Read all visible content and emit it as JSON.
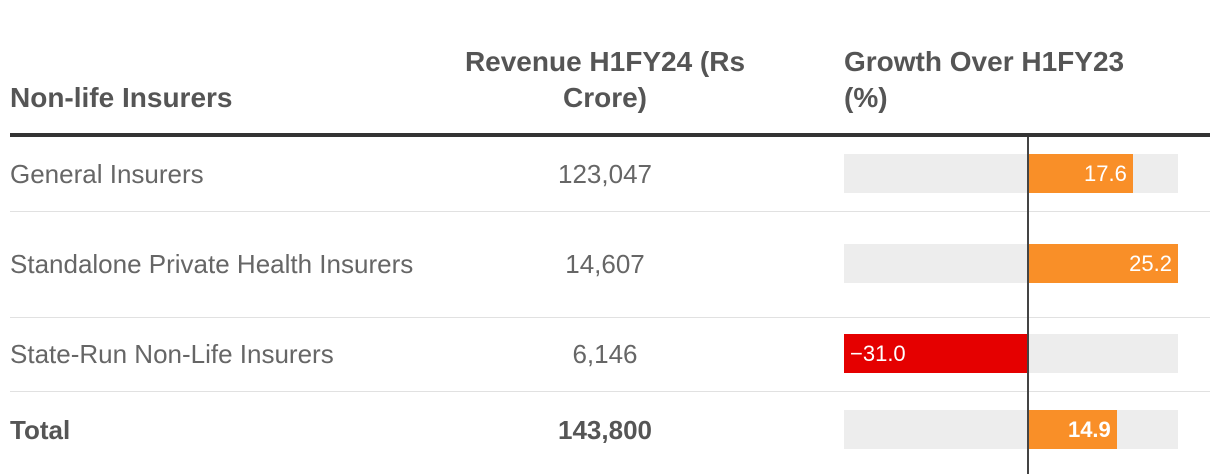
{
  "header": {
    "name": "Non-life Insurers",
    "revenue": "Revenue H1FY24 (Rs Crore)",
    "growth": "Growth Over H1FY23 (%)"
  },
  "rows": [
    {
      "name": "General Insurers",
      "revenue": "123,047",
      "growth_label": "17.6"
    },
    {
      "name": "Standalone Private Health Insurers",
      "revenue": "14,607",
      "growth_label": "25.2"
    },
    {
      "name": "State-Run Non-Life Insurers",
      "revenue": "6,146",
      "growth_label": "−31.0"
    },
    {
      "name": "Total",
      "revenue": "143,800",
      "growth_label": "14.9"
    }
  ],
  "chart_data": {
    "type": "table",
    "columns": [
      "Non-life Insurers",
      "Revenue H1FY24 (Rs Crore)",
      "Growth Over H1FY23 (%)"
    ],
    "categories": [
      "General Insurers",
      "Standalone Private Health Insurers",
      "State-Run Non-Life Insurers",
      "Total"
    ],
    "revenue": [
      123047,
      14607,
      6146,
      143800
    ],
    "growth": [
      17.6,
      25.2,
      -31.0,
      14.9
    ],
    "growth_range": [
      -31.0,
      25.2
    ],
    "colors": {
      "positive": "#f98f28",
      "negative": "#e50000",
      "bar_background": "#ededed"
    }
  }
}
